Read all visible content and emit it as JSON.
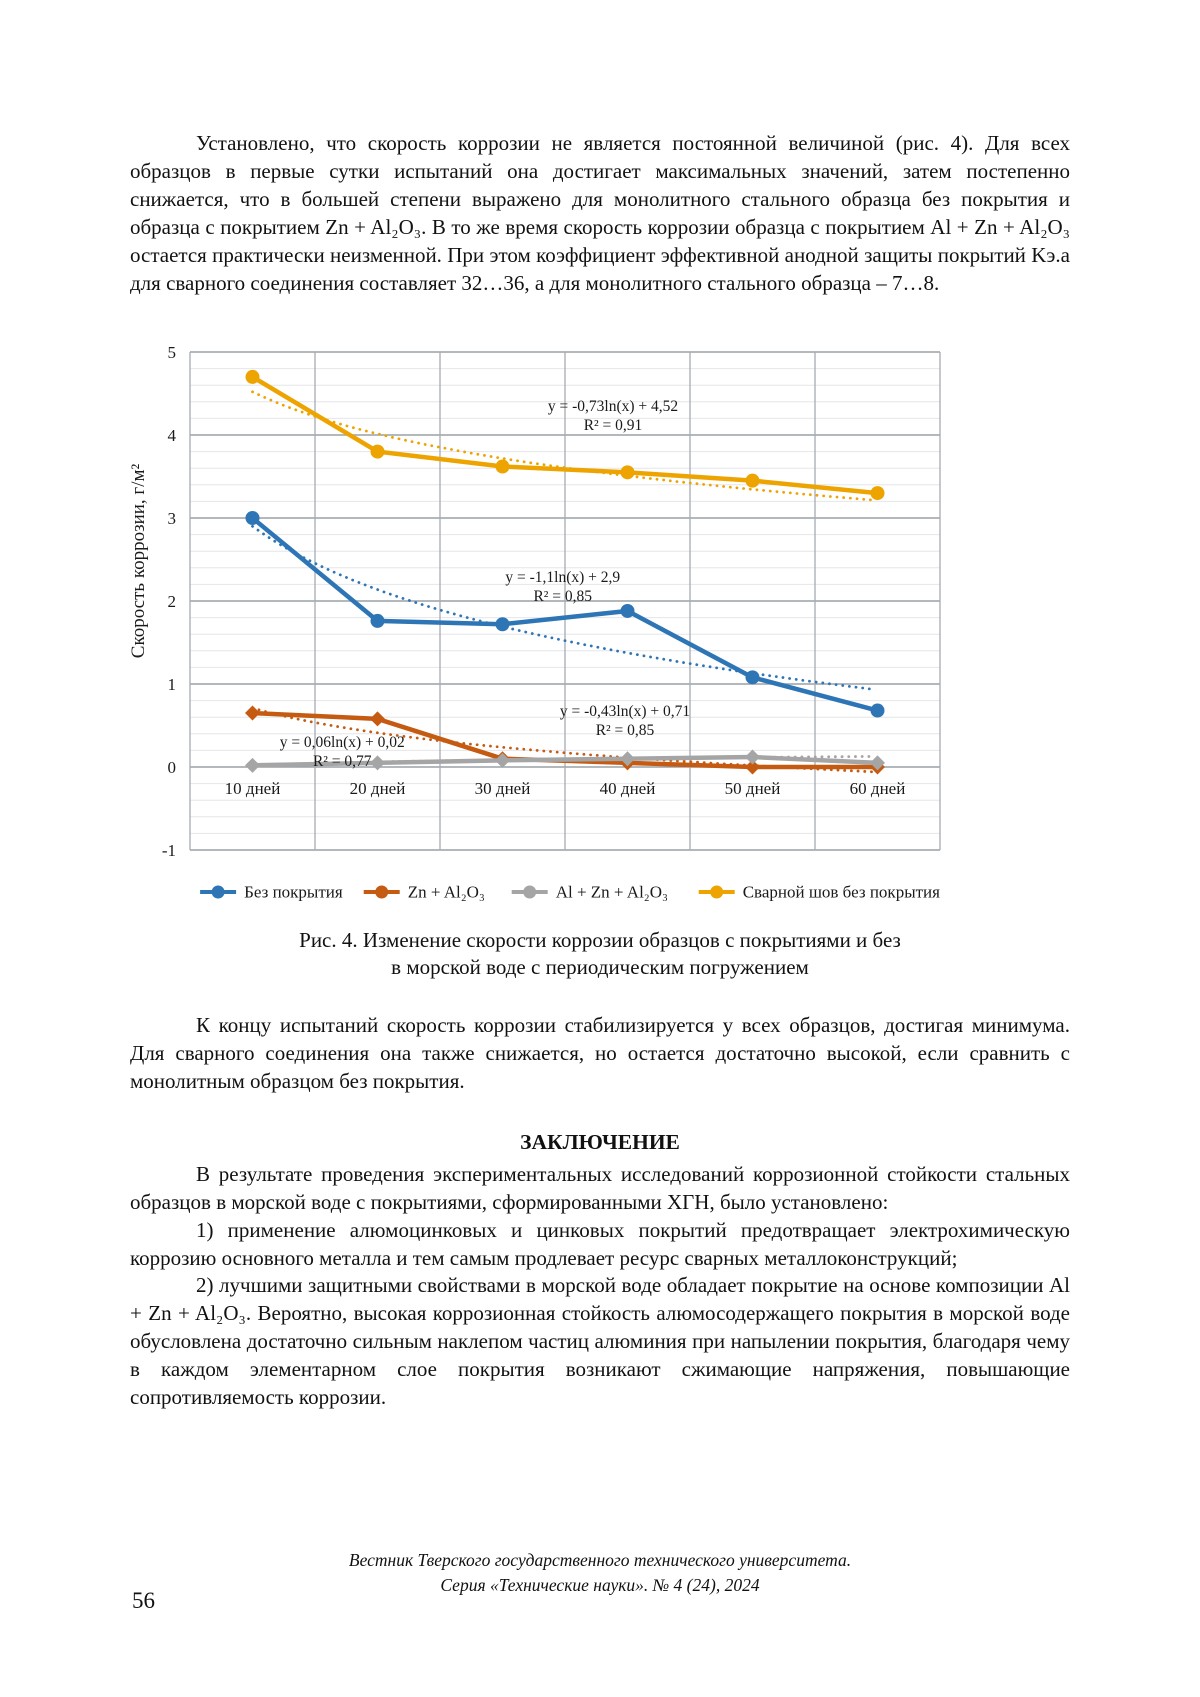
{
  "article": {
    "paragraph_1": "Установлено, что скорость коррозии не является постоянной величиной (рис. 4). Для всех образцов в первые сутки испытаний она достигает максимальных значений, затем постепенно снижается, что в большей степени выражено для монолитного стального образца без покрытия и образца с покрытием Zn + Al₂O₃. В то же время скорость коррозии образца с покрытием Al + Zn + Al₂O₃ остается практически неизменной. При этом коэффициент эффективной анодной защиты покрытий Kэ.а для сварного соединения составляет 32…36, а для монолитного стального образца – 7…8.",
    "figure_caption_line1": "Рис. 4. Изменение скорости коррозии образцов с покрытиями и без",
    "figure_caption_line2": "в морской воде с периодическим погружением",
    "paragraph_2": "К концу испытаний скорость коррозии стабилизируется у всех образцов, достигая минимума. Для сварного соединения она также снижается, но остается достаточно высокой, если сравнить с монолитным образцом без покрытия.",
    "conclusion_heading": "ЗАКЛЮЧЕНИЕ",
    "conclusion_intro": "В результате проведения экспериментальных исследований коррозионной стойкости стальных образцов в морской воде с покрытиями, сформированными ХГН, было установлено:",
    "conclusion_item_1": "1) применение алюмоцинковых и цинковых покрытий предотвращает электрохимическую коррозию основного металла и тем самым продлевает ресурс сварных металлоконструкций;",
    "conclusion_item_2": "2) лучшими защитными свойствами в морской воде обладает покрытие на основе композиции Al + Zn + Al₂O₃. Вероятно, высокая коррозионная стойкость алюмосодержащего покрытия в морской воде обусловлена достаточно сильным наклепом частиц алюминия при напылении покрытия, благодаря чему в каждом элементарном слое покрытия возникают сжимающие напряжения, повышающие сопротивляемость коррозии."
  },
  "footer": {
    "journal_line1": "Вестник Тверского государственного технического университета.",
    "journal_line2": "Серия «Технические науки». № 4 (24), 2024",
    "page_number": "56"
  },
  "chart_data": {
    "type": "line",
    "title": "",
    "xlabel": "",
    "ylabel": "Скорость коррозии, г/м²",
    "ylim": [
      -1,
      5
    ],
    "y_major_step": 1,
    "y_minor_step": 0.2,
    "grid": true,
    "legend_position": "bottom",
    "categories": [
      "10 дней",
      "20 дней",
      "30 дней",
      "40 дней",
      "50 дней",
      "60 дней"
    ],
    "series": [
      {
        "name": "Без покрытия",
        "color": "#2E75B6",
        "marker": "circle",
        "values": [
          3.0,
          1.76,
          1.72,
          1.88,
          1.08,
          0.68
        ],
        "trendline": {
          "type": "logarithmic",
          "a": -1.1,
          "b": 2.9,
          "eq": "y = -1,1ln(x) + 2,9",
          "r2": "R² = 0,85",
          "anchor": [
            0.497,
            0.452
          ]
        }
      },
      {
        "name": "Zn + Al₂O₃",
        "color": "#C55A11",
        "marker": "diamond",
        "values": [
          0.65,
          0.58,
          0.1,
          0.05,
          0.0,
          0.0
        ],
        "trendline": {
          "type": "logarithmic",
          "a": -0.43,
          "b": 0.71,
          "eq": "y = -0,43ln(x) + 0,71",
          "r2": "R² = 0,85",
          "anchor": [
            0.58,
            0.721
          ]
        }
      },
      {
        "name": "Al + Zn + Al₂O₃",
        "color": "#A5A5A5",
        "marker": "diamond",
        "values": [
          0.02,
          0.05,
          0.08,
          0.1,
          0.12,
          0.05
        ],
        "trendline": {
          "type": "logarithmic",
          "a": 0.06,
          "b": 0.02,
          "eq": "y = 0,06ln(x) + 0,02",
          "r2": "R² = 0,77",
          "anchor": [
            0.203,
            0.783
          ]
        }
      },
      {
        "name": "Сварной шов без покрытия",
        "color": "#EDA400",
        "marker": "circle",
        "values": [
          4.7,
          3.8,
          3.62,
          3.55,
          3.45,
          3.3
        ],
        "trendline": {
          "type": "logarithmic",
          "a": -0.73,
          "b": 4.52,
          "eq": "y = -0,73ln(x) + 4,52",
          "r2": "R² = 0,91",
          "anchor": [
            0.564,
            0.108
          ]
        }
      }
    ]
  }
}
